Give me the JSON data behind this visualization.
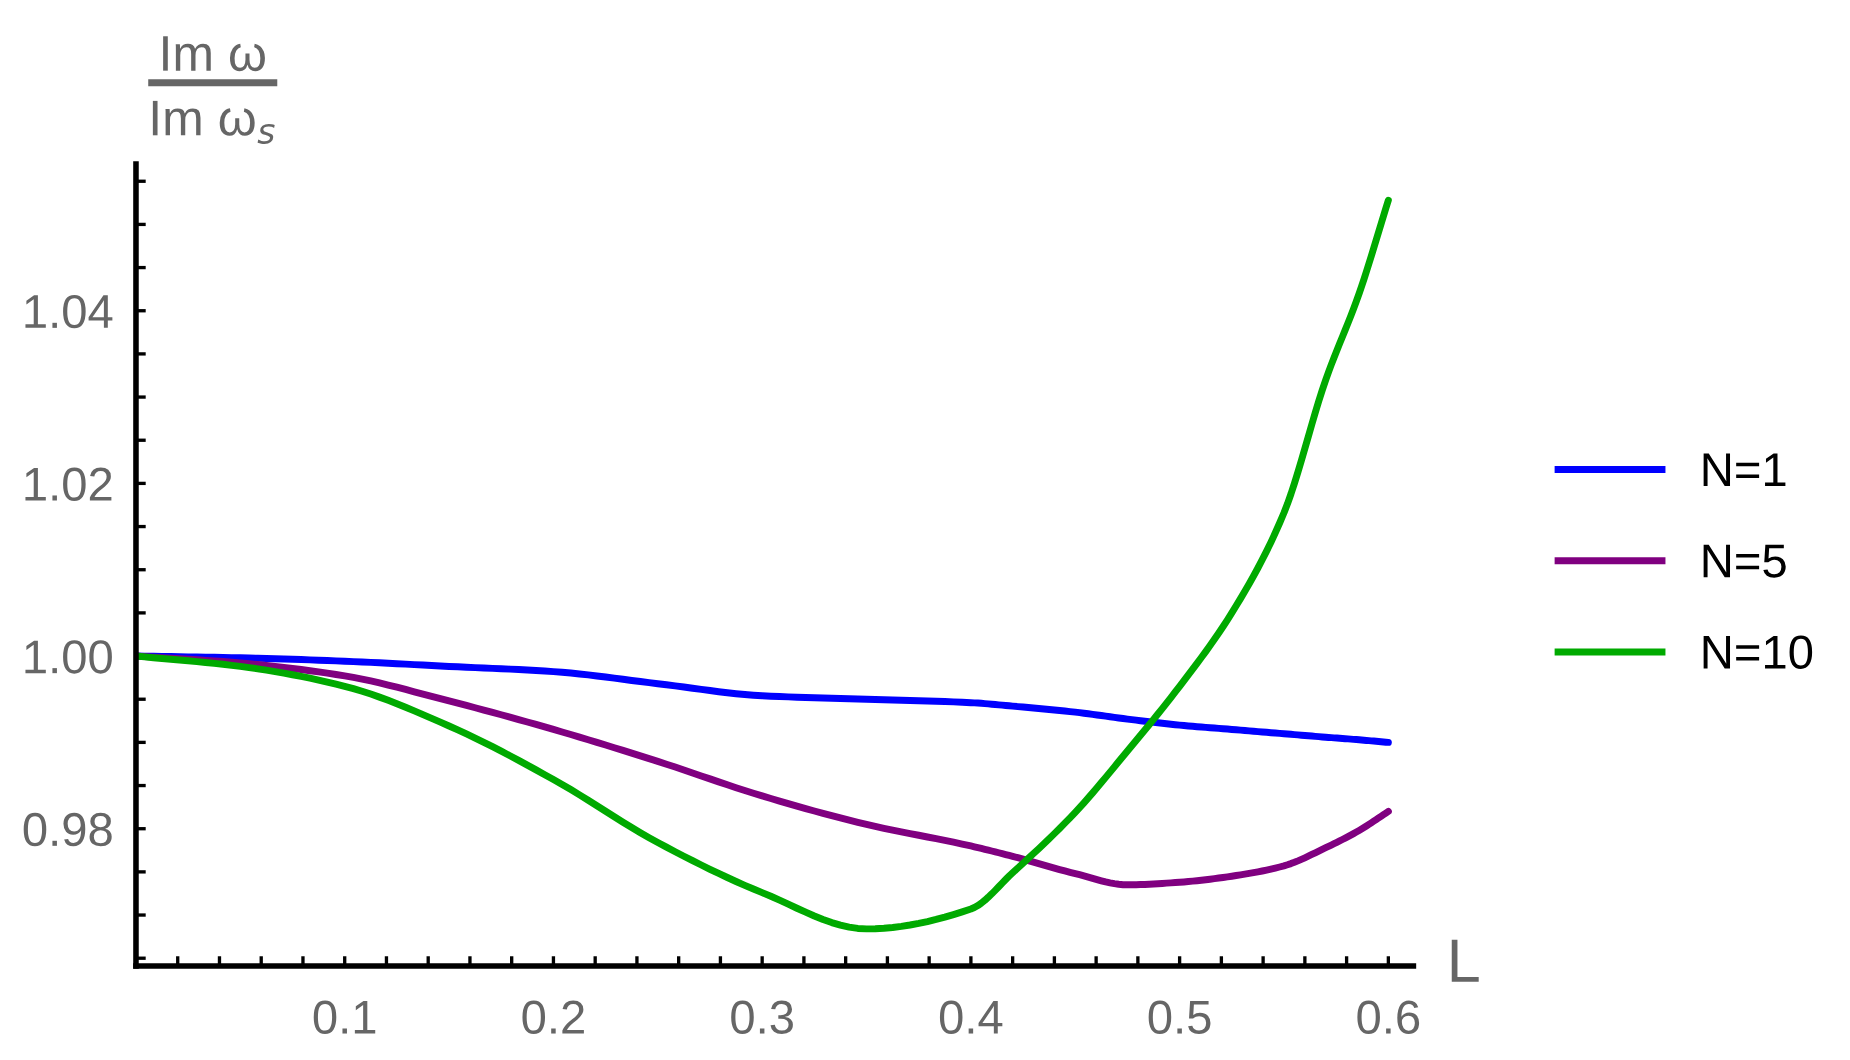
{
  "chart_data": {
    "type": "line",
    "ylabel": "Im ω\nIm ω$_{s}$",
    "xlabel": "L",
    "x": [
      0,
      0.05,
      0.1,
      0.15,
      0.2,
      0.25,
      0.3,
      0.35,
      0.4,
      0.42,
      0.45,
      0.475,
      0.5,
      0.525,
      0.55,
      0.57,
      0.586,
      0.6
    ],
    "series": [
      {
        "name": "N=1",
        "color": "#0000ff",
        "values": [
          1.0,
          0.9998,
          0.9994,
          0.9988,
          0.9982,
          0.9968,
          0.9954,
          0.995,
          0.9946,
          0.9942,
          0.9935,
          0.9927,
          0.992,
          0.9915,
          0.991,
          0.9906,
          0.9903,
          0.99
        ]
      },
      {
        "name": "N=5",
        "color": "#800080",
        "values": [
          1.0,
          0.9992,
          0.9977,
          0.9948,
          0.9915,
          0.9878,
          0.9838,
          0.9805,
          0.978,
          0.9768,
          0.9748,
          0.9735,
          0.9738,
          0.9745,
          0.9757,
          0.9778,
          0.9798,
          0.982
        ]
      },
      {
        "name": "N=10",
        "color": "#00aa00",
        "values": [
          1.0,
          0.9988,
          0.9965,
          0.9919,
          0.9857,
          0.9784,
          0.9726,
          0.9684,
          0.9707,
          0.9749,
          0.9819,
          0.989,
          0.9965,
          1.005,
          1.0166,
          1.032,
          1.042,
          1.0528
        ]
      }
    ],
    "xlim": [
      0,
      0.612
    ],
    "ylim": [
      0.9641,
      1.057
    ],
    "xticks": [
      {
        "value": 0.02,
        "label": null
      },
      {
        "value": 0.04,
        "label": null
      },
      {
        "value": 0.06,
        "label": null
      },
      {
        "value": 0.08,
        "label": null
      },
      0.1,
      {
        "value": 0.12,
        "label": null
      },
      {
        "value": 0.14,
        "label": null
      },
      {
        "value": 0.16,
        "label": null
      },
      {
        "value": 0.18,
        "label": null
      },
      0.2,
      {
        "value": 0.22,
        "label": null
      },
      {
        "value": 0.24,
        "label": null
      },
      {
        "value": 0.26,
        "label": null
      },
      {
        "value": 0.28,
        "label": null
      },
      0.3,
      {
        "value": 0.32,
        "label": null
      },
      {
        "value": 0.34,
        "label": null
      },
      {
        "value": 0.36,
        "label": null
      },
      {
        "value": 0.38,
        "label": null
      },
      0.4,
      {
        "value": 0.42,
        "label": null
      },
      {
        "value": 0.44,
        "label": null
      },
      {
        "value": 0.46,
        "label": null
      },
      {
        "value": 0.48,
        "label": null
      },
      0.5,
      {
        "value": 0.52,
        "label": null
      },
      {
        "value": 0.54,
        "label": null
      },
      {
        "value": 0.56,
        "label": null
      },
      {
        "value": 0.58,
        "label": null
      },
      0.6
    ],
    "yticks": [
      {
        "value": 0.965,
        "label": null
      },
      {
        "value": 0.97,
        "label": null
      },
      {
        "value": 0.975,
        "label": null
      },
      0.98,
      {
        "value": 0.985,
        "label": null
      },
      {
        "value": 0.99,
        "label": null
      },
      {
        "value": 0.995,
        "label": null
      },
      {
        "value": 1.0,
        "label": "1.00"
      },
      {
        "value": 1.005,
        "label": null
      },
      {
        "value": 1.01,
        "label": null
      },
      {
        "value": 1.015,
        "label": null
      },
      1.02,
      {
        "value": 1.025,
        "label": null
      },
      {
        "value": 1.03,
        "label": null
      },
      {
        "value": 1.035,
        "label": null
      },
      1.04,
      {
        "value": 1.045,
        "label": null
      },
      {
        "value": 1.05,
        "label": null
      },
      {
        "value": 1.055,
        "label": null
      }
    ],
    "grid": false,
    "legend": "right",
    "marker": "none",
    "line_style": "solid"
  }
}
